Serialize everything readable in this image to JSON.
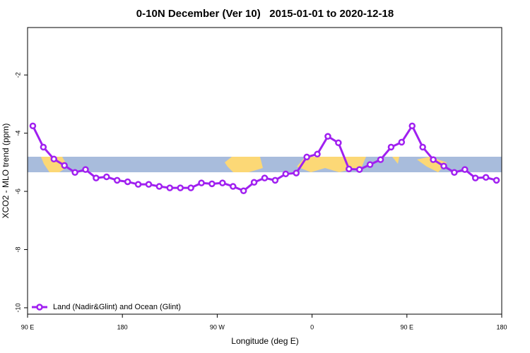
{
  "chart_data": {
    "type": "line",
    "title": "0-10N December (Ver 10)   2015-01-01 to 2020-12-18",
    "x_label": "Longitude (deg E)",
    "y_label": "XCO2 - MLO trend (ppm)",
    "x": [
      95,
      105,
      115,
      125,
      135,
      145,
      155,
      165,
      175,
      185,
      195,
      205,
      215,
      225,
      235,
      245,
      255,
      265,
      275,
      285,
      295,
      305,
      315,
      325,
      335,
      345,
      355,
      365,
      375,
      385,
      395,
      405,
      415,
      425,
      435,
      445,
      455,
      465,
      475,
      485,
      495,
      505,
      515,
      525,
      535
    ],
    "series": [
      {
        "name": "Land (Nadir&Glint) and Ocean (Glint)",
        "color": "#a020f0",
        "values": [
          -3.75,
          -4.48,
          -4.89,
          -5.11,
          -5.35,
          -5.25,
          -5.54,
          -5.5,
          -5.62,
          -5.67,
          -5.76,
          -5.76,
          -5.83,
          -5.88,
          -5.88,
          -5.88,
          -5.71,
          -5.74,
          -5.71,
          -5.83,
          -5.98,
          -5.69,
          -5.54,
          -5.62,
          -5.4,
          -5.37,
          -4.82,
          -4.72,
          -4.11,
          -4.33,
          -5.23,
          -5.25,
          -5.08,
          -4.91,
          -4.48,
          -4.31,
          -3.75,
          -4.48,
          -4.91,
          -5.13,
          -5.35,
          -5.25,
          -5.54,
          -5.52,
          -5.62
        ]
      }
    ],
    "xlim": [
      90,
      540
    ],
    "xticks": [
      {
        "value": 90,
        "label": "90 E"
      },
      {
        "value": 180,
        "label": "180"
      },
      {
        "value": 270,
        "label": "90 W"
      },
      {
        "value": 360,
        "label": "0"
      },
      {
        "value": 450,
        "label": "90 E"
      },
      {
        "value": 540,
        "label": "180"
      }
    ],
    "ylim": [
      -10.22,
      -0.37
    ],
    "yticks": [
      -2,
      -4,
      -6,
      -8,
      -10
    ],
    "legend": "bottom-left"
  }
}
